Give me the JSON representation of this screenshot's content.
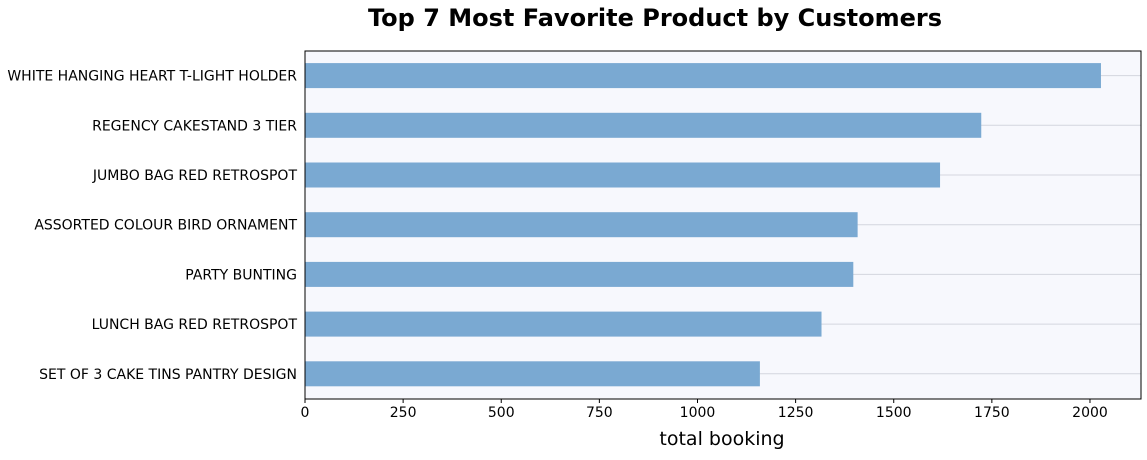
{
  "chart_data": {
    "type": "bar",
    "orientation": "horizontal",
    "title": "Top 7 Most Favorite Product by Customers",
    "xlabel": "total booking",
    "ylabel": "",
    "categories": [
      "WHITE HANGING HEART T-LIGHT HOLDER",
      "REGENCY CAKESTAND 3 TIER",
      "JUMBO BAG RED RETROSPOT",
      "ASSORTED COLOUR BIRD ORNAMENT",
      "PARTY BUNTING",
      "LUNCH BAG RED RETROSPOT",
      "SET OF 3 CAKE TINS PANTRY DESIGN"
    ],
    "values": [
      2028,
      1723,
      1618,
      1408,
      1397,
      1316,
      1159
    ],
    "xlim": [
      0,
      2130
    ],
    "xticks": [
      0,
      250,
      500,
      750,
      1000,
      1250,
      1500,
      1750,
      2000
    ],
    "grid": "horizontal",
    "colors": {
      "bar": "#7aa9d2",
      "plot_background": "#f7f8fd",
      "gridline": "#d4d6de",
      "frame": "#000000"
    }
  }
}
